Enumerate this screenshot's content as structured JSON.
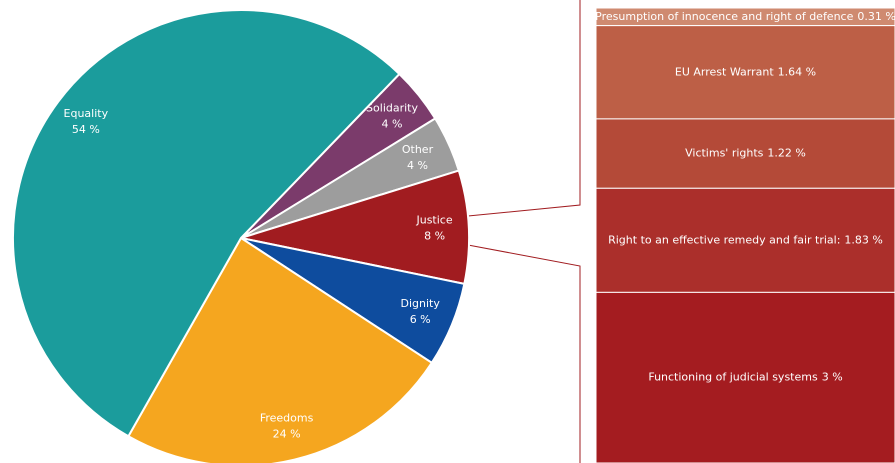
{
  "chart_data": [
    {
      "type": "pie",
      "categories": [
        "Solidarity",
        "Other",
        "Justice",
        "Dignity",
        "Freedoms",
        "Equality"
      ],
      "values": [
        4,
        4,
        8,
        6,
        24,
        54
      ],
      "value_labels": [
        "4 %",
        "4 %",
        "8 %",
        "6 %",
        "24 %",
        "54 %"
      ],
      "colors": [
        "#7b3b6b",
        "#9d9d9d",
        "#a11c20",
        "#0e4c9e",
        "#f5a61f",
        "#1b9c9c"
      ]
    },
    {
      "type": "stacked-bar",
      "categories": [
        "Presumption of innocence and right of defence",
        "EU Arrest Warrant",
        "Victims' rights",
        "Right to an effective remedy and fair trial:",
        "Functioning of judicial systems"
      ],
      "values": [
        0.31,
        1.64,
        1.22,
        1.83,
        3
      ],
      "value_labels": [
        "0.31 %",
        "1.64 %",
        "1.22 %",
        "1.83 %",
        "3 %"
      ],
      "colors": [
        "#cf8a70",
        "#bd5f46",
        "#b44a38",
        "#ab2f2b",
        "#a41c20"
      ]
    }
  ]
}
